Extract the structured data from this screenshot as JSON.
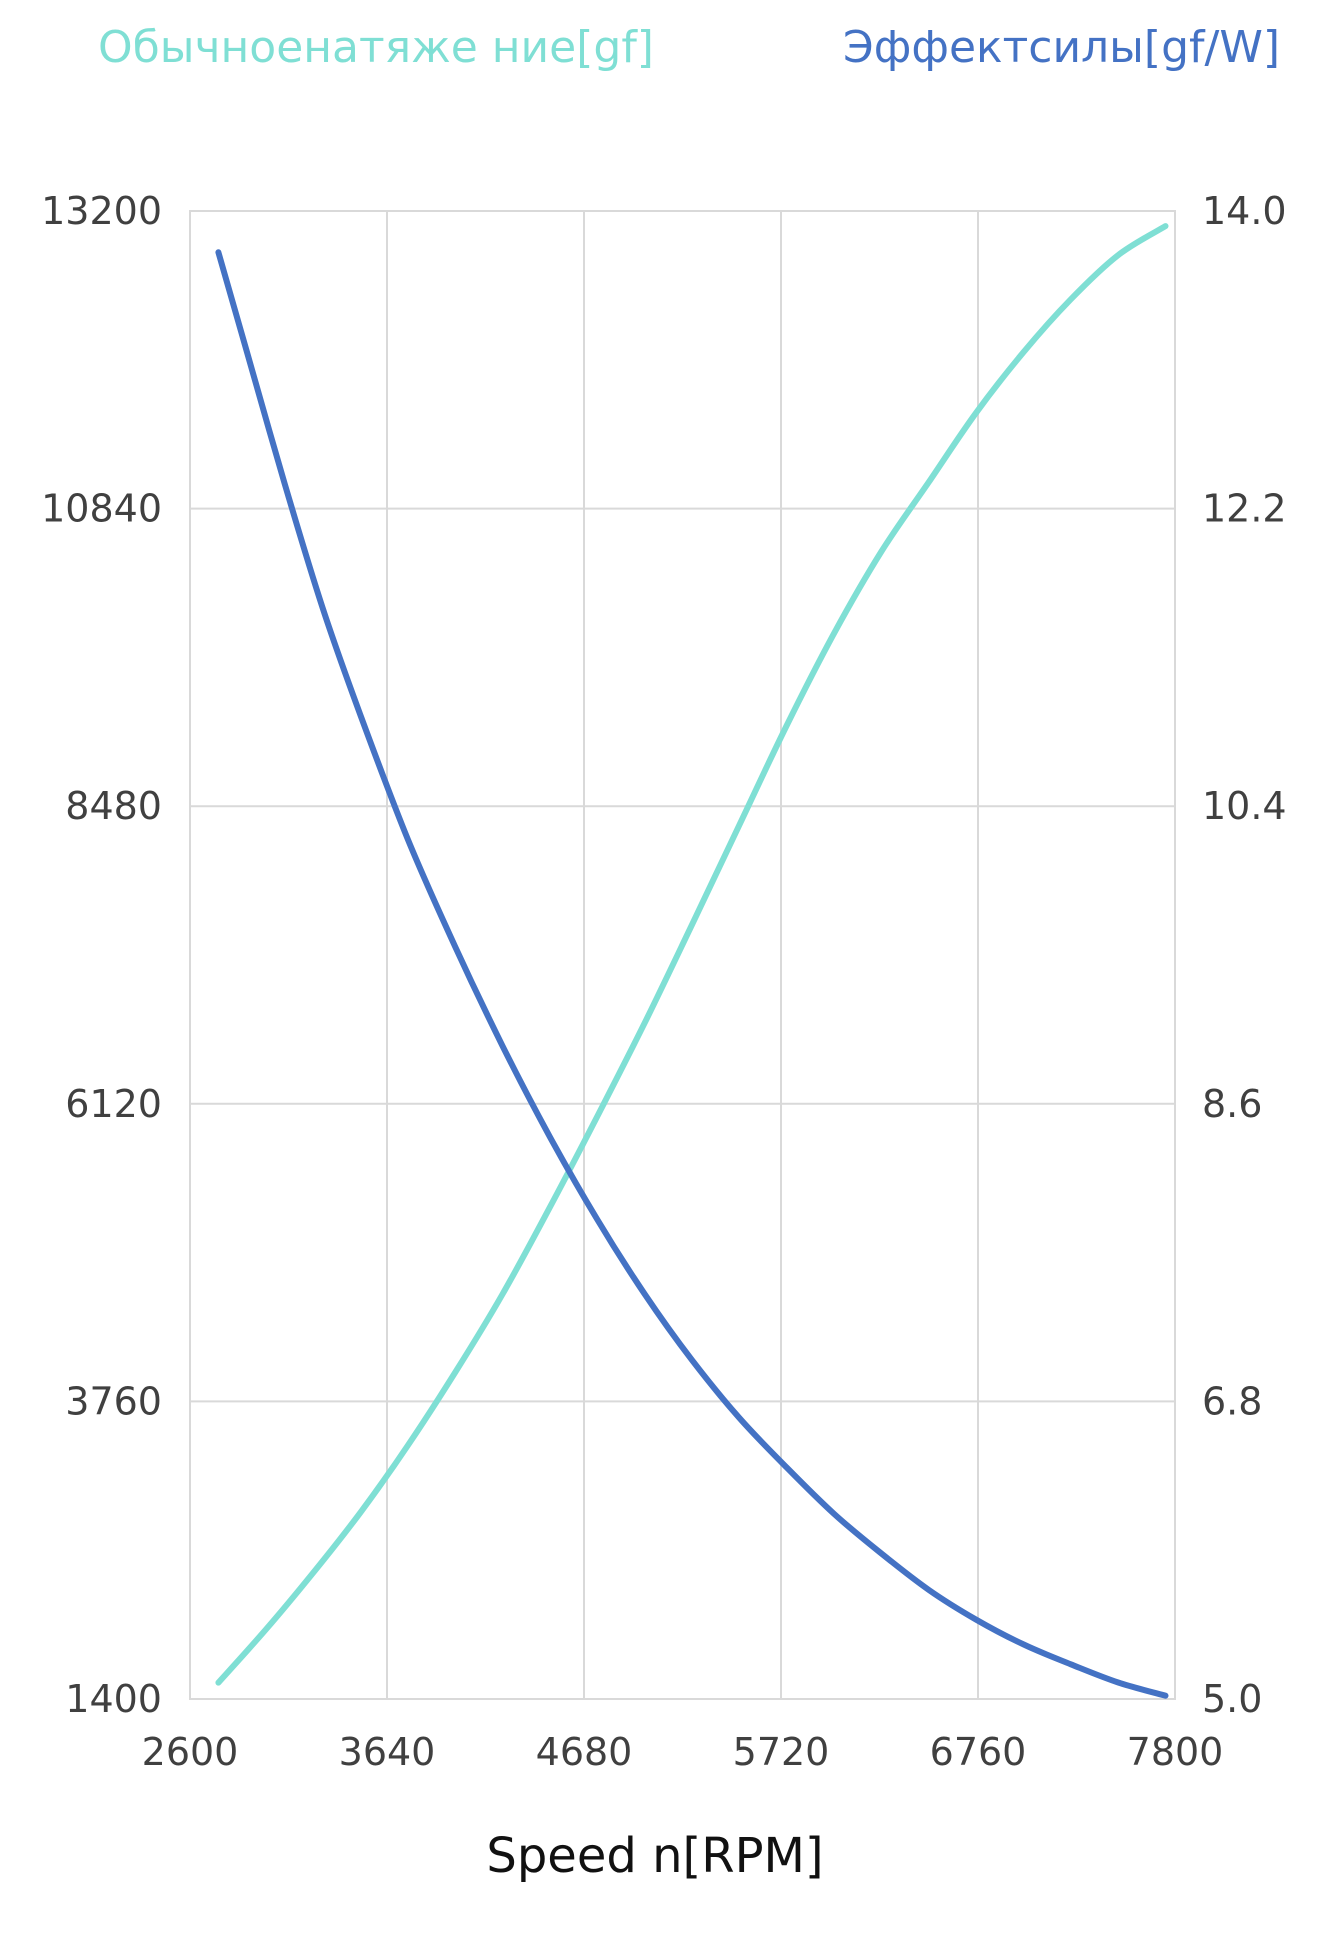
{
  "chart_data": {
    "type": "line",
    "xlabel": "Speed n[RPM]",
    "x_ticks": [
      "2600",
      "3640",
      "4680",
      "5720",
      "6760",
      "7800"
    ],
    "y_left_ticks": [
      "1400",
      "3760",
      "6120",
      "8480",
      "10840",
      "13200"
    ],
    "y_right_ticks": [
      "5.0",
      "6.8",
      "8.6",
      "10.4",
      "12.2",
      "14.0"
    ],
    "xlim": [
      2600,
      7800
    ],
    "ylim_left": [
      1400,
      13200
    ],
    "ylim_right": [
      5.0,
      14.0
    ],
    "grid": true,
    "series": [
      {
        "name": "Обычноенатяже ние[gf]",
        "axis": "left",
        "color": "#7fdfd4",
        "x": [
          2750,
          3000,
          3250,
          3500,
          3750,
          4000,
          4250,
          4500,
          4750,
          5000,
          5250,
          5500,
          5750,
          6000,
          6250,
          6500,
          6750,
          7000,
          7250,
          7500,
          7750
        ],
        "y": [
          1530,
          1950,
          2400,
          2880,
          3410,
          3990,
          4610,
          5300,
          6020,
          6760,
          7540,
          8330,
          9120,
          9850,
          10500,
          11050,
          11600,
          12080,
          12500,
          12850,
          13080
        ]
      },
      {
        "name": "Эффектсилы[gf/W]",
        "axis": "right",
        "color": "#4472c4",
        "x": [
          2750,
          2900,
          3100,
          3300,
          3500,
          3750,
          4000,
          4250,
          4500,
          4750,
          5000,
          5250,
          5500,
          5750,
          6000,
          6250,
          6500,
          6750,
          7000,
          7250,
          7500,
          7750
        ],
        "y": [
          13.75,
          13.15,
          12.35,
          11.6,
          10.95,
          10.2,
          9.55,
          8.95,
          8.4,
          7.9,
          7.45,
          7.05,
          6.7,
          6.4,
          6.12,
          5.88,
          5.66,
          5.48,
          5.33,
          5.21,
          5.1,
          5.02
        ]
      }
    ]
  }
}
